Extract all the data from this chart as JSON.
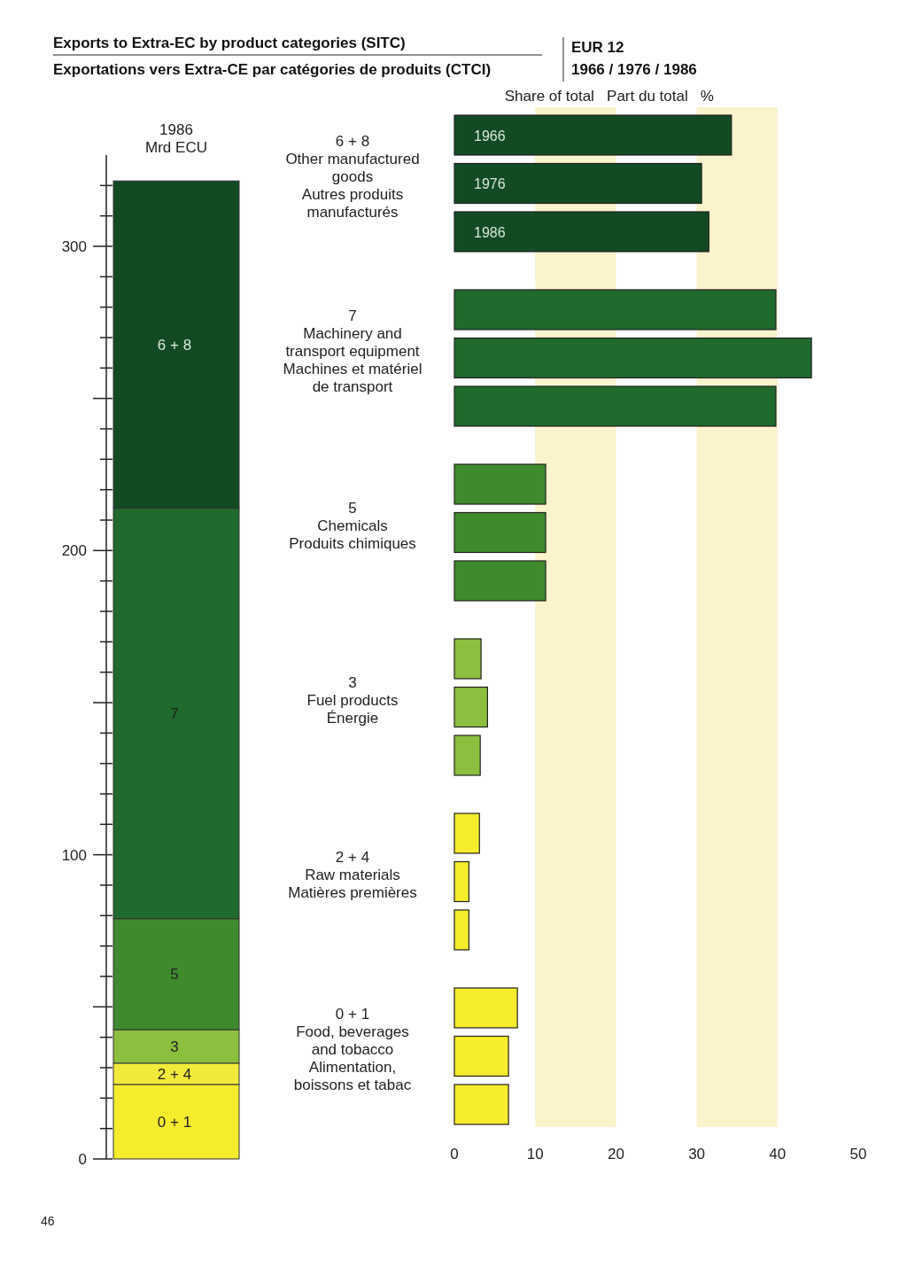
{
  "chart_data": [
    {
      "type": "bar",
      "title": "1986",
      "subtitle": "Mrd ECU",
      "stacked": true,
      "categories": [
        null
      ],
      "ylim": [
        0,
        330
      ],
      "yticks": [
        0,
        {
          "value": 10,
          "label": null
        },
        {
          "value": 20,
          "label": null
        },
        {
          "value": 30,
          "label": null
        },
        {
          "value": 40,
          "label": null
        },
        {
          "value": 50,
          "label": null
        },
        {
          "value": 60,
          "label": null
        },
        {
          "value": 70,
          "label": null
        },
        {
          "value": 80,
          "label": null
        },
        {
          "value": 90,
          "label": null
        },
        100,
        {
          "value": 110,
          "label": null
        },
        {
          "value": 120,
          "label": null
        },
        {
          "value": 130,
          "label": null
        },
        {
          "value": 140,
          "label": null
        },
        {
          "value": 150,
          "label": null
        },
        {
          "value": 160,
          "label": null
        },
        {
          "value": 170,
          "label": null
        },
        {
          "value": 180,
          "label": null
        },
        {
          "value": 190,
          "label": null
        },
        200,
        {
          "value": 210,
          "label": null
        },
        {
          "value": 220,
          "label": null
        },
        {
          "value": 230,
          "label": null
        },
        {
          "value": 240,
          "label": null
        },
        {
          "value": 250,
          "label": null
        },
        {
          "value": 260,
          "label": null
        },
        {
          "value": 270,
          "label": null
        },
        {
          "value": 280,
          "label": null
        },
        {
          "value": 290,
          "label": null
        },
        300,
        {
          "value": 310,
          "label": null
        },
        {
          "value": 320,
          "label": null
        }
      ],
      "series": [
        {
          "name": "0 + 1",
          "color": "#f4ec2c",
          "values": [
            24.5
          ]
        },
        {
          "name": "2 + 4",
          "color": "#f2ea3a",
          "values": [
            7
          ]
        },
        {
          "name": "3",
          "color": "#8cbf3e",
          "values": [
            11
          ]
        },
        {
          "name": "5",
          "color": "#3f8a2c",
          "values": [
            36.5
          ]
        },
        {
          "name": "7",
          "color": "#1f6a2c",
          "values": [
            135
          ]
        },
        {
          "name": "6 + 8",
          "color": "#124a24",
          "values": [
            107.5
          ]
        }
      ],
      "annotations": [
        "46"
      ]
    },
    {
      "type": "bar",
      "orientation": "horizontal",
      "title": "Exports to Extra-EC by product categories (SITC)",
      "subtitle": "Exportations vers Extra-CE par catégories de produits (CTCI)",
      "xlabel": "Share of total   Part du total   %",
      "annotations": [
        "EUR 12",
        "1966 / 1976 / 1986"
      ],
      "categories": [
        "6 + 8\nOther manufactured\ngoods\nAutres produits\nmanufacturés",
        "7\nMachinery and\ntransport equipment\nMachines et matériel\nde transport",
        "5\nChemicals\nProduits chimiques",
        "3\nFuel products\nÉnergie",
        "2 + 4\nRaw materials\nMatières premières",
        "0 + 1\nFood, beverages\nand tobacco\nAlimentation,\nboissons et tabac"
      ],
      "xlim": [
        0,
        50
      ],
      "xticks": [
        0,
        10,
        20,
        30,
        40,
        50
      ],
      "bands": [
        {
          "axis": "x",
          "from": 10,
          "to": 20,
          "color": "#fbf3cc"
        },
        {
          "axis": "x",
          "from": 30,
          "to": 40,
          "color": "#fbf3cc"
        }
      ],
      "series": [
        {
          "name": "1966",
          "colors": [
            "#124a24",
            "#1f6a2c",
            "#3f8a2c",
            "#8cbf3e",
            "#f4ec2c",
            "#f4ec2c"
          ],
          "values": [
            34.3,
            39.8,
            11.3,
            3.3,
            3.1,
            7.8
          ]
        },
        {
          "name": "1976",
          "colors": [
            "#124a24",
            "#1f6a2c",
            "#3f8a2c",
            "#8cbf3e",
            "#f4ec2c",
            "#f4ec2c"
          ],
          "values": [
            30.6,
            44.2,
            11.3,
            4.1,
            1.8,
            6.7
          ]
        },
        {
          "name": "1986",
          "colors": [
            "#124a24",
            "#1f6a2c",
            "#3f8a2c",
            "#8cbf3e",
            "#f4ec2c",
            "#f4ec2c"
          ],
          "values": [
            31.5,
            39.8,
            11.3,
            3.2,
            1.8,
            6.7
          ]
        }
      ]
    }
  ]
}
